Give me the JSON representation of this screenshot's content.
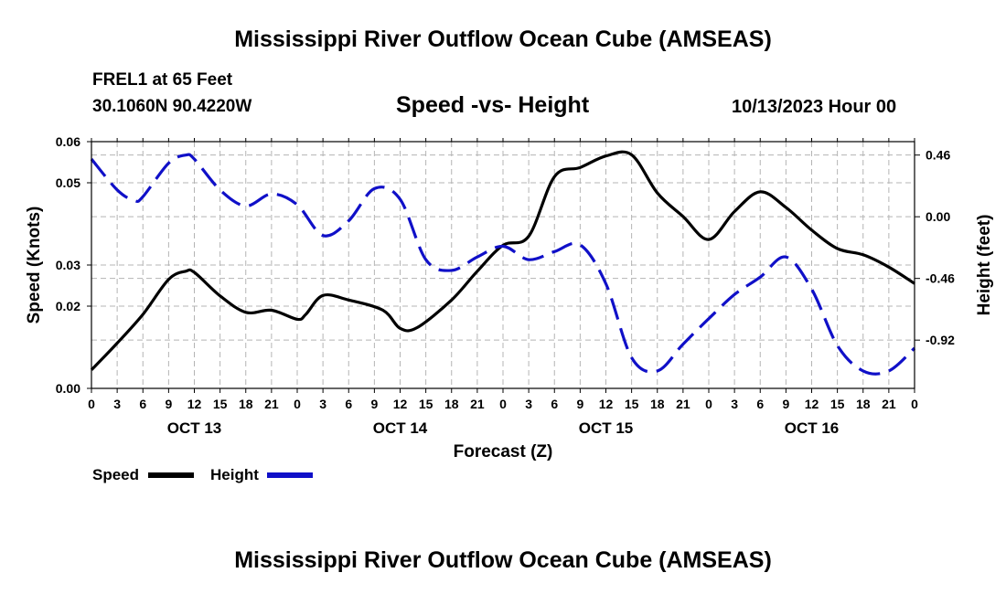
{
  "page": {
    "title": "Mississippi River Outflow Ocean Cube (AMSEAS)",
    "footer_title": "Mississippi River Outflow Ocean Cube (AMSEAS)",
    "station": "FREL1 at 65 Feet",
    "coords": "30.1060N  90.4220W",
    "chart_title": "Speed -vs- Height",
    "date": "10/13/2023 Hour 00"
  },
  "colors": {
    "speed": "#000000",
    "height": "#1010c8",
    "grid": "#b4b4b4"
  },
  "chart_data": {
    "type": "line",
    "title": "Speed -vs- Height",
    "xlabel": "Forecast (Z)",
    "ylabel": "Speed (Knots)",
    "y2label": "Height (feet)",
    "xlim": [
      0,
      96
    ],
    "ylim": [
      0.0,
      0.06
    ],
    "y2lim": [
      -1.28,
      0.56
    ],
    "grid": true,
    "x_tick_labels": [
      "0",
      "3",
      "6",
      "9",
      "12",
      "15",
      "18",
      "21",
      "0",
      "3",
      "6",
      "9",
      "12",
      "15",
      "18",
      "21",
      "0",
      "3",
      "6",
      "9",
      "12",
      "15",
      "18",
      "21",
      "0",
      "3",
      "6",
      "9",
      "12",
      "15",
      "18",
      "21",
      "0"
    ],
    "y_ticks": [
      {
        "value": 0.0,
        "label": "0.00"
      },
      {
        "value": 0.02,
        "label": "0.02"
      },
      {
        "value": 0.03,
        "label": "0.03"
      },
      {
        "value": 0.05,
        "label": "0.05"
      },
      {
        "value": 0.06,
        "label": "0.06"
      }
    ],
    "y2_ticks": [
      {
        "value": 0.46,
        "label": "0.46"
      },
      {
        "value": 0.0,
        "label": "0.00"
      },
      {
        "value": -0.46,
        "label": "-0.46"
      },
      {
        "value": -0.92,
        "label": "-0.92"
      }
    ],
    "day_labels": [
      {
        "x": 12,
        "label": "OCT 13"
      },
      {
        "x": 36,
        "label": "OCT 14"
      },
      {
        "x": 60,
        "label": "OCT 15"
      },
      {
        "x": 84,
        "label": "OCT 16"
      }
    ],
    "series": [
      {
        "name": "Speed",
        "axis": "left",
        "style": "solid",
        "points": [
          [
            0,
            0.0045
          ],
          [
            3,
            0.011
          ],
          [
            6,
            0.018
          ],
          [
            9,
            0.0265
          ],
          [
            11,
            0.0285
          ],
          [
            12,
            0.0282
          ],
          [
            15,
            0.0225
          ],
          [
            18,
            0.0185
          ],
          [
            21,
            0.019
          ],
          [
            24,
            0.0168
          ],
          [
            25,
            0.018
          ],
          [
            27,
            0.0226
          ],
          [
            30,
            0.0215
          ],
          [
            34,
            0.019
          ],
          [
            36,
            0.0146
          ],
          [
            38,
            0.0148
          ],
          [
            42,
            0.0215
          ],
          [
            45,
            0.0285
          ],
          [
            48,
            0.0348
          ],
          [
            51,
            0.037
          ],
          [
            54,
            0.0515
          ],
          [
            57,
            0.0537
          ],
          [
            60,
            0.0565
          ],
          [
            63,
            0.0568
          ],
          [
            66,
            0.0475
          ],
          [
            69,
            0.0418
          ],
          [
            72,
            0.0362
          ],
          [
            75,
            0.043
          ],
          [
            78,
            0.0478
          ],
          [
            81,
            0.044
          ],
          [
            84,
            0.0385
          ],
          [
            87,
            0.034
          ],
          [
            90,
            0.0325
          ],
          [
            93,
            0.0295
          ],
          [
            96,
            0.0255
          ]
        ]
      },
      {
        "name": "Height",
        "axis": "right",
        "style": "dashed",
        "points": [
          [
            0,
            0.43
          ],
          [
            3,
            0.2
          ],
          [
            5,
            0.12
          ],
          [
            6,
            0.15
          ],
          [
            9,
            0.4
          ],
          [
            11,
            0.46
          ],
          [
            12,
            0.43
          ],
          [
            15,
            0.2
          ],
          [
            18,
            0.08
          ],
          [
            21,
            0.17
          ],
          [
            24,
            0.09
          ],
          [
            27,
            -0.14
          ],
          [
            30,
            -0.03
          ],
          [
            33,
            0.21
          ],
          [
            36,
            0.13
          ],
          [
            39,
            -0.32
          ],
          [
            42,
            -0.4
          ],
          [
            45,
            -0.3
          ],
          [
            48,
            -0.22
          ],
          [
            51,
            -0.32
          ],
          [
            54,
            -0.26
          ],
          [
            57,
            -0.21
          ],
          [
            60,
            -0.5
          ],
          [
            63,
            -1.05
          ],
          [
            66,
            -1.15
          ],
          [
            69,
            -0.95
          ],
          [
            72,
            -0.76
          ],
          [
            75,
            -0.58
          ],
          [
            78,
            -0.45
          ],
          [
            81,
            -0.3
          ],
          [
            84,
            -0.54
          ],
          [
            87,
            -0.96
          ],
          [
            90,
            -1.15
          ],
          [
            93,
            -1.15
          ],
          [
            96,
            -0.98
          ]
        ]
      }
    ],
    "legend": {
      "placement": "bottom-left",
      "entries": [
        "Speed",
        "Height"
      ]
    }
  }
}
